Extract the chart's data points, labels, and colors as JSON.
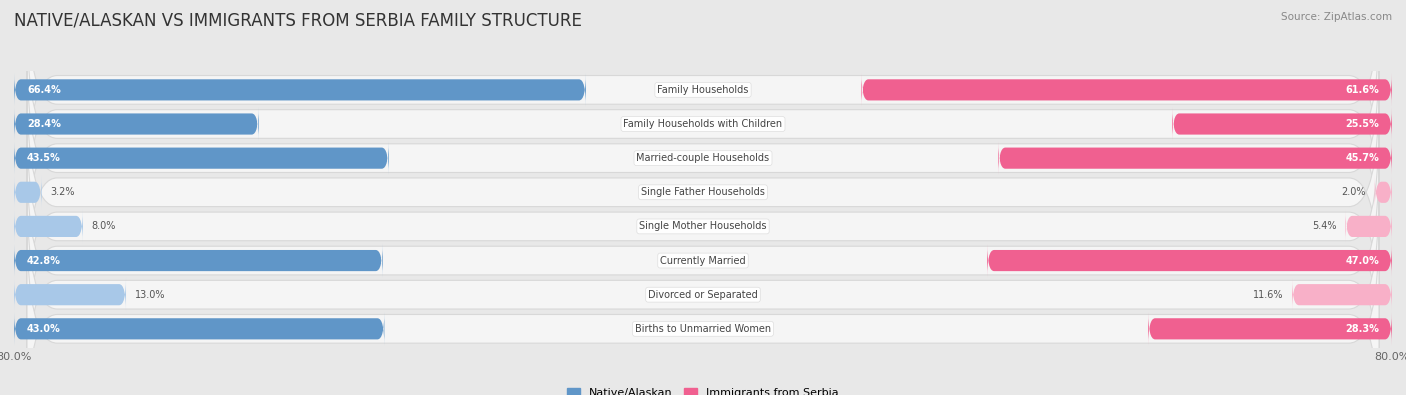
{
  "title": "NATIVE/ALASKAN VS IMMIGRANTS FROM SERBIA FAMILY STRUCTURE",
  "source": "Source: ZipAtlas.com",
  "categories": [
    "Family Households",
    "Family Households with Children",
    "Married-couple Households",
    "Single Father Households",
    "Single Mother Households",
    "Currently Married",
    "Divorced or Separated",
    "Births to Unmarried Women"
  ],
  "native_values": [
    66.4,
    28.4,
    43.5,
    3.2,
    8.0,
    42.8,
    13.0,
    43.0
  ],
  "immigrant_values": [
    61.6,
    25.5,
    45.7,
    2.0,
    5.4,
    47.0,
    11.6,
    28.3
  ],
  "native_color_dark": "#6096c8",
  "native_color_light": "#a8c8e8",
  "immigrant_color_dark": "#f06090",
  "immigrant_color_light": "#f8b0c8",
  "axis_min": -80.0,
  "axis_max": 80.0,
  "background_color": "#e8e8e8",
  "row_bg_color": "#f5f5f5",
  "row_border_color": "#d8d8d8",
  "title_fontsize": 12,
  "bar_height": 0.62,
  "legend_native": "Native/Alaskan",
  "legend_immigrant": "Immigrants from Serbia",
  "value_threshold": 20
}
